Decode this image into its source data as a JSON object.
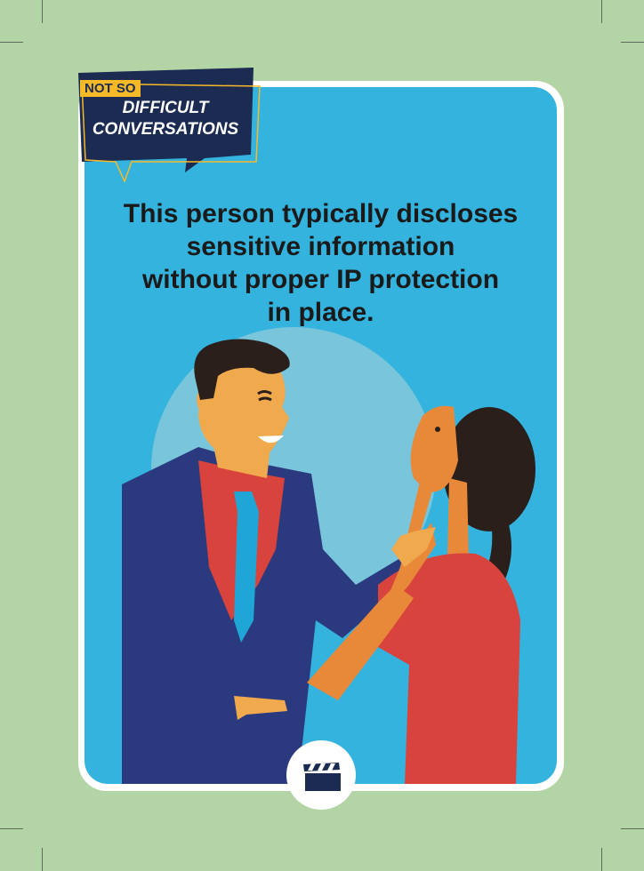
{
  "badge": {
    "top_label": "NOT SO",
    "line1": "DIFFICULT",
    "line2": "CONVERSATIONS"
  },
  "headline": {
    "line1": "This person typically discloses",
    "line2": "sensitive information",
    "line3": "without proper IP protection",
    "line4": "in place."
  },
  "colors": {
    "background": "#b3d5a6",
    "panel": "#34b3de",
    "badge_navy": "#1b2b52",
    "badge_yellow": "#f7b928",
    "suit": "#2b3a7e",
    "shirt": "#d9433e",
    "skin": "#f0a94d",
    "hair": "#2a1f1b"
  },
  "icons": {
    "bottom": "clapperboard-icon"
  }
}
